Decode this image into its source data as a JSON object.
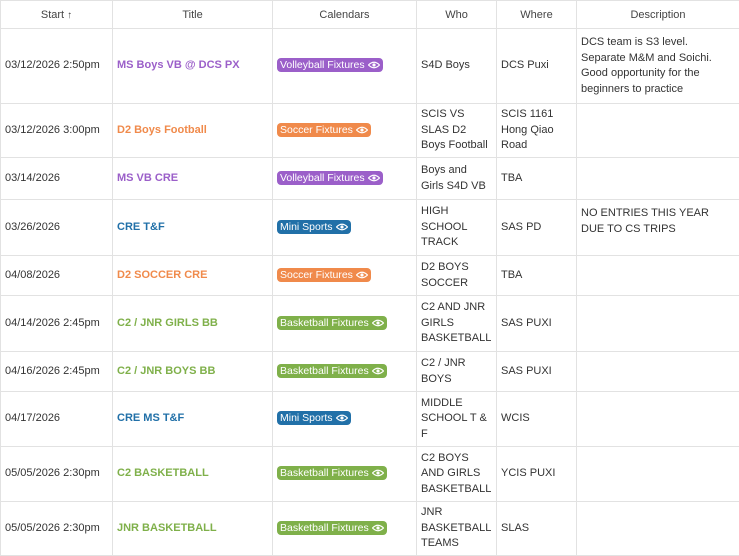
{
  "columns": {
    "start": "Start",
    "title": "Title",
    "calendars": "Calendars",
    "who": "Who",
    "where": "Where",
    "description": "Description",
    "sort_indicator": "↑"
  },
  "colors": {
    "volleyball": "#9b5fc9",
    "soccer": "#f08a4b",
    "mini": "#2170a8",
    "basketball": "#7fb04a"
  },
  "rows": [
    {
      "start": "03/12/2026 2:50pm",
      "title": "MS Boys VB @ DCS PX",
      "cal": "Volleyball Fixtures",
      "color": "volleyball",
      "who": "S4D Boys",
      "where": "DCS Puxi",
      "desc": "DCS team is S3 level. Separate M&M and Soichi. Good opportunity for the beginners to practice"
    },
    {
      "start": "03/12/2026 3:00pm",
      "title": "D2 Boys Football",
      "cal": "Soccer Fixtures",
      "color": "soccer",
      "who": "SCIS VS SLAS D2 Boys Football",
      "where": "SCIS 1161 Hong Qiao Road",
      "desc": ""
    },
    {
      "start": "03/14/2026",
      "title": "MS VB CRE",
      "cal": "Volleyball Fixtures",
      "color": "volleyball",
      "who": "Boys and Girls S4D VB",
      "where": "TBA",
      "desc": ""
    },
    {
      "start": "03/26/2026",
      "title": "CRE T&F",
      "cal": "Mini Sports",
      "color": "mini",
      "who": "HIGH SCHOOL TRACK",
      "where": "SAS PD",
      "desc": "NO ENTRIES THIS YEAR DUE TO CS TRIPS"
    },
    {
      "start": "04/08/2026",
      "title": "D2 SOCCER CRE",
      "cal": "Soccer Fixtures",
      "color": "soccer",
      "who": "D2 BOYS SOCCER",
      "where": "TBA",
      "desc": ""
    },
    {
      "start": "04/14/2026 2:45pm",
      "title": "C2 / JNR GIRLS BB",
      "cal": "Basketball Fixtures",
      "color": "basketball",
      "who": "C2 AND JNR GIRLS BASKETBALL",
      "where": "SAS PUXI",
      "desc": ""
    },
    {
      "start": "04/16/2026 2:45pm",
      "title": "C2 / JNR BOYS BB",
      "cal": "Basketball Fixtures",
      "color": "basketball",
      "who": "C2 / JNR BOYS",
      "where": "SAS PUXI",
      "desc": ""
    },
    {
      "start": "04/17/2026",
      "title": "CRE MS T&F",
      "cal": "Mini Sports",
      "color": "mini",
      "who": "MIDDLE SCHOOL T & F",
      "where": "WCIS",
      "desc": ""
    },
    {
      "start": "05/05/2026 2:30pm",
      "title": "C2 BASKETBALL",
      "cal": "Basketball Fixtures",
      "color": "basketball",
      "who": "C2 BOYS AND GIRLS BASKETBALL",
      "where": "YCIS PUXI",
      "desc": ""
    },
    {
      "start": "05/05/2026 2:30pm",
      "title": "JNR BASKETBALL",
      "cal": "Basketball Fixtures",
      "color": "basketball",
      "who": "JNR BASKETBALL TEAMS",
      "where": "SLAS",
      "desc": ""
    }
  ]
}
